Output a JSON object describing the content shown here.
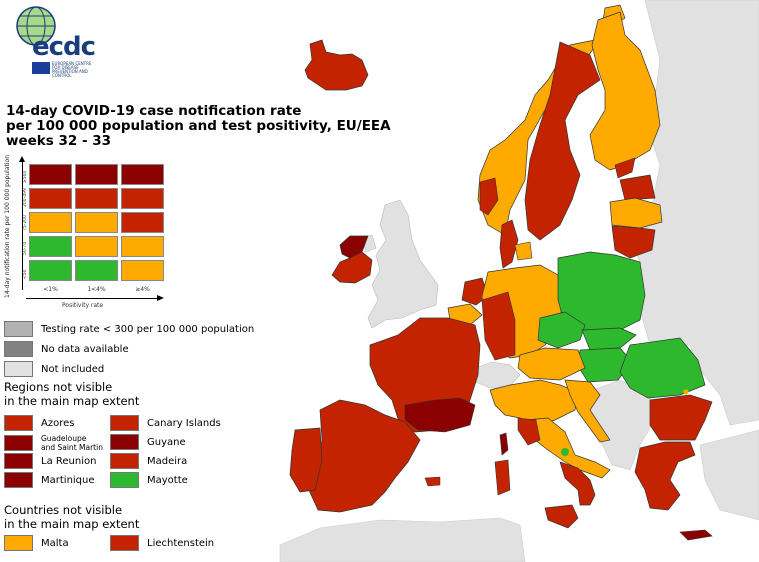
{
  "logo": {
    "text": "ecdc",
    "subtitle": "EUROPEAN CENTRE FOR DISEASE PREVENTION AND CONTROL"
  },
  "title": "14-day COVID-19 case notification rate\nper 100 000 population and test positivity, EU/EEA\nweeks 32 - 33",
  "colors": {
    "dark_red": "#8b0000",
    "red": "#c42300",
    "orange": "#ffaa00",
    "green": "#2db82d",
    "grey_testing": "#b2b2b2",
    "grey_nodata": "#828282",
    "grey_notincluded": "#e1e1e1",
    "sea": "#ffffff"
  },
  "matrix": {
    "y_axis_label": "14-day notification rate per 100 000 population",
    "x_axis_label": "Positivity rate",
    "rows": [
      "≥500",
      "200-499",
      "75-200",
      "50-74",
      "<50"
    ],
    "columns": [
      "<1%",
      "1<4%",
      "≥4%"
    ],
    "cells": [
      [
        "#8b0000",
        "#8b0000",
        "#8b0000"
      ],
      [
        "#c42300",
        "#c42300",
        "#c42300"
      ],
      [
        "#ffaa00",
        "#ffaa00",
        "#c42300"
      ],
      [
        "#2db82d",
        "#ffaa00",
        "#ffaa00"
      ],
      [
        "#2db82d",
        "#2db82d",
        "#ffaa00"
      ]
    ]
  },
  "legend": {
    "grey": [
      {
        "label": "Testing rate < 300 per 100 000 population",
        "color": "#b2b2b2"
      },
      {
        "label": "No data available",
        "color": "#828282"
      },
      {
        "label": "Not included",
        "color": "#e1e1e1"
      }
    ],
    "regions_heading": "Regions not visible\nin the main map extent",
    "regions": [
      {
        "label": "Azores",
        "color": "#c42300"
      },
      {
        "label": "Canary Islands",
        "color": "#c42300"
      },
      {
        "label": "Guadeloupe\nand Saint Martin",
        "color": "#8b0000"
      },
      {
        "label": "Guyane",
        "color": "#8b0000"
      },
      {
        "label": "La Reunion",
        "color": "#8b0000"
      },
      {
        "label": "Madeira",
        "color": "#c42300"
      },
      {
        "label": "Martinique",
        "color": "#8b0000"
      },
      {
        "label": "Mayotte",
        "color": "#2db82d"
      }
    ],
    "countries_heading": "Countries not visible\nin the main map extent",
    "countries": [
      {
        "label": "Malta",
        "color": "#ffaa00"
      },
      {
        "label": "Liechtenstein",
        "color": "#c42300"
      }
    ]
  },
  "map_regions": [
    {
      "name": "Iceland",
      "category": "red"
    },
    {
      "name": "Norway",
      "category": "orange (west coast red)"
    },
    {
      "name": "Sweden",
      "category": "red"
    },
    {
      "name": "Finland",
      "category": "orange"
    },
    {
      "name": "Estonia",
      "category": "red"
    },
    {
      "name": "Latvia",
      "category": "orange"
    },
    {
      "name": "Lithuania",
      "category": "red"
    },
    {
      "name": "Denmark",
      "category": "red / orange islands"
    },
    {
      "name": "Ireland",
      "category": "red / dark red"
    },
    {
      "name": "Netherlands",
      "category": "red / orange"
    },
    {
      "name": "Belgium",
      "category": "orange / red"
    },
    {
      "name": "Luxembourg",
      "category": "orange"
    },
    {
      "name": "Germany",
      "category": "orange / red"
    },
    {
      "name": "France",
      "category": "red / dark red south"
    },
    {
      "name": "Spain",
      "category": "red"
    },
    {
      "name": "Portugal",
      "category": "red"
    },
    {
      "name": "Poland",
      "category": "green"
    },
    {
      "name": "Czechia",
      "category": "green"
    },
    {
      "name": "Slovakia",
      "category": "green"
    },
    {
      "name": "Hungary",
      "category": "green"
    },
    {
      "name": "Romania",
      "category": "green"
    },
    {
      "name": "Austria",
      "category": "orange"
    },
    {
      "name": "Slovenia",
      "category": "orange"
    },
    {
      "name": "Croatia",
      "category": "orange"
    },
    {
      "name": "Italy",
      "category": "orange / red"
    },
    {
      "name": "Bulgaria",
      "category": "red"
    },
    {
      "name": "Greece",
      "category": "red"
    },
    {
      "name": "Cyprus/Crete",
      "category": "dark red"
    }
  ]
}
